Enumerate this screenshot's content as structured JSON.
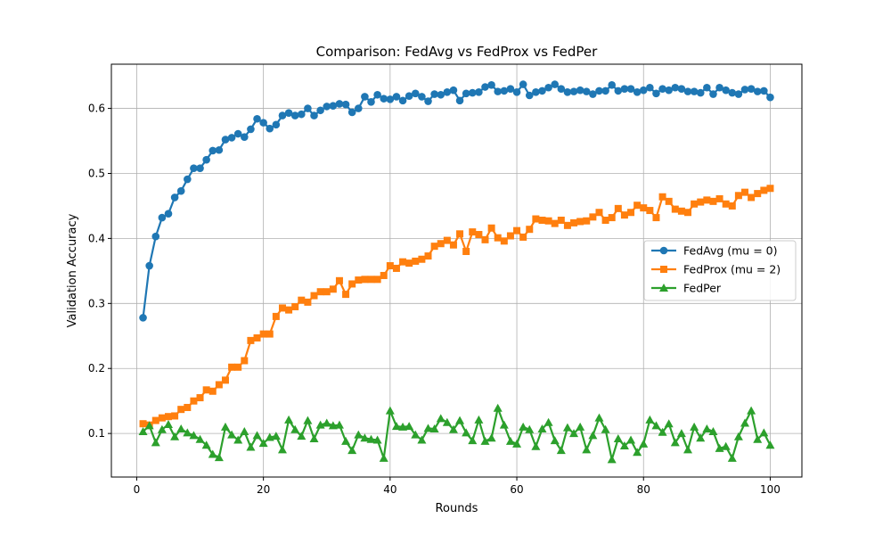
{
  "chart_data": {
    "type": "line",
    "title": "Comparison: FedAvg vs FedProx vs FedPer",
    "xlabel": "Rounds",
    "ylabel": "Validation Accuracy",
    "xlim": [
      -4,
      105
    ],
    "ylim": [
      0.033,
      0.668
    ],
    "xticks": [
      0,
      20,
      40,
      60,
      80,
      100
    ],
    "yticks": [
      0.1,
      0.2,
      0.3,
      0.4,
      0.5,
      0.6
    ],
    "xtick_labels": [
      "0",
      "20",
      "40",
      "60",
      "80",
      "100"
    ],
    "ytick_labels": [
      "0.1",
      "0.2",
      "0.3",
      "0.4",
      "0.5",
      "0.6"
    ],
    "grid": true,
    "legend_position": "center-right",
    "x": [
      1,
      2,
      3,
      4,
      5,
      6,
      7,
      8,
      9,
      10,
      11,
      12,
      13,
      14,
      15,
      16,
      17,
      18,
      19,
      20,
      21,
      22,
      23,
      24,
      25,
      26,
      27,
      28,
      29,
      30,
      31,
      32,
      33,
      34,
      35,
      36,
      37,
      38,
      39,
      40,
      41,
      42,
      43,
      44,
      45,
      46,
      47,
      48,
      49,
      50,
      51,
      52,
      53,
      54,
      55,
      56,
      57,
      58,
      59,
      60,
      61,
      62,
      63,
      64,
      65,
      66,
      67,
      68,
      69,
      70,
      71,
      72,
      73,
      74,
      75,
      76,
      77,
      78,
      79,
      80,
      81,
      82,
      83,
      84,
      85,
      86,
      87,
      88,
      89,
      90,
      91,
      92,
      93,
      94,
      95,
      96,
      97,
      98,
      99,
      100
    ],
    "series": [
      {
        "name": "FedAvg (mu = 0)",
        "color": "#1f77b4",
        "marker": "circle",
        "values": [
          0.278,
          0.358,
          0.403,
          0.432,
          0.438,
          0.463,
          0.473,
          0.491,
          0.508,
          0.508,
          0.521,
          0.535,
          0.536,
          0.552,
          0.555,
          0.561,
          0.556,
          0.568,
          0.584,
          0.578,
          0.569,
          0.575,
          0.589,
          0.593,
          0.589,
          0.591,
          0.6,
          0.589,
          0.597,
          0.603,
          0.604,
          0.607,
          0.606,
          0.594,
          0.6,
          0.618,
          0.61,
          0.621,
          0.615,
          0.614,
          0.618,
          0.612,
          0.619,
          0.623,
          0.618,
          0.611,
          0.622,
          0.621,
          0.625,
          0.628,
          0.612,
          0.623,
          0.624,
          0.625,
          0.633,
          0.636,
          0.626,
          0.627,
          0.63,
          0.625,
          0.637,
          0.62,
          0.625,
          0.627,
          0.632,
          0.637,
          0.63,
          0.625,
          0.626,
          0.628,
          0.626,
          0.622,
          0.627,
          0.627,
          0.636,
          0.627,
          0.63,
          0.63,
          0.625,
          0.628,
          0.632,
          0.623,
          0.63,
          0.628,
          0.632,
          0.63,
          0.626,
          0.626,
          0.624,
          0.632,
          0.622,
          0.632,
          0.628,
          0.624,
          0.622,
          0.629,
          0.63,
          0.626,
          0.627,
          0.617
        ]
      },
      {
        "name": "FedProx (mu = 2)",
        "color": "#ff7f0e",
        "marker": "square",
        "values": [
          0.115,
          0.113,
          0.12,
          0.124,
          0.126,
          0.127,
          0.137,
          0.14,
          0.15,
          0.155,
          0.167,
          0.165,
          0.175,
          0.182,
          0.202,
          0.202,
          0.212,
          0.243,
          0.247,
          0.253,
          0.253,
          0.28,
          0.293,
          0.29,
          0.295,
          0.305,
          0.302,
          0.312,
          0.318,
          0.318,
          0.322,
          0.335,
          0.314,
          0.33,
          0.336,
          0.337,
          0.337,
          0.337,
          0.343,
          0.358,
          0.354,
          0.364,
          0.362,
          0.365,
          0.368,
          0.373,
          0.388,
          0.392,
          0.397,
          0.39,
          0.407,
          0.38,
          0.41,
          0.406,
          0.398,
          0.416,
          0.401,
          0.396,
          0.404,
          0.412,
          0.402,
          0.414,
          0.43,
          0.428,
          0.427,
          0.423,
          0.428,
          0.42,
          0.424,
          0.426,
          0.427,
          0.433,
          0.44,
          0.428,
          0.432,
          0.446,
          0.436,
          0.44,
          0.451,
          0.447,
          0.443,
          0.432,
          0.464,
          0.457,
          0.445,
          0.442,
          0.44,
          0.453,
          0.456,
          0.459,
          0.457,
          0.461,
          0.453,
          0.45,
          0.466,
          0.471,
          0.463,
          0.469,
          0.474,
          0.477
        ]
      },
      {
        "name": "FedPer",
        "color": "#2ca02c",
        "marker": "triangle",
        "values": [
          0.103,
          0.112,
          0.086,
          0.106,
          0.114,
          0.095,
          0.107,
          0.101,
          0.097,
          0.091,
          0.082,
          0.068,
          0.063,
          0.11,
          0.098,
          0.09,
          0.103,
          0.079,
          0.097,
          0.085,
          0.094,
          0.096,
          0.075,
          0.121,
          0.106,
          0.096,
          0.12,
          0.092,
          0.113,
          0.116,
          0.112,
          0.113,
          0.088,
          0.074,
          0.098,
          0.093,
          0.091,
          0.09,
          0.062,
          0.135,
          0.111,
          0.11,
          0.111,
          0.098,
          0.09,
          0.108,
          0.107,
          0.123,
          0.117,
          0.106,
          0.12,
          0.101,
          0.089,
          0.121,
          0.088,
          0.093,
          0.139,
          0.113,
          0.088,
          0.084,
          0.11,
          0.106,
          0.08,
          0.107,
          0.117,
          0.089,
          0.074,
          0.109,
          0.1,
          0.11,
          0.075,
          0.097,
          0.124,
          0.106,
          0.06,
          0.092,
          0.081,
          0.09,
          0.071,
          0.084,
          0.121,
          0.112,
          0.102,
          0.115,
          0.086,
          0.1,
          0.075,
          0.11,
          0.093,
          0.107,
          0.103,
          0.077,
          0.08,
          0.062,
          0.095,
          0.116,
          0.135,
          0.091,
          0.101,
          0.082
        ]
      }
    ]
  }
}
